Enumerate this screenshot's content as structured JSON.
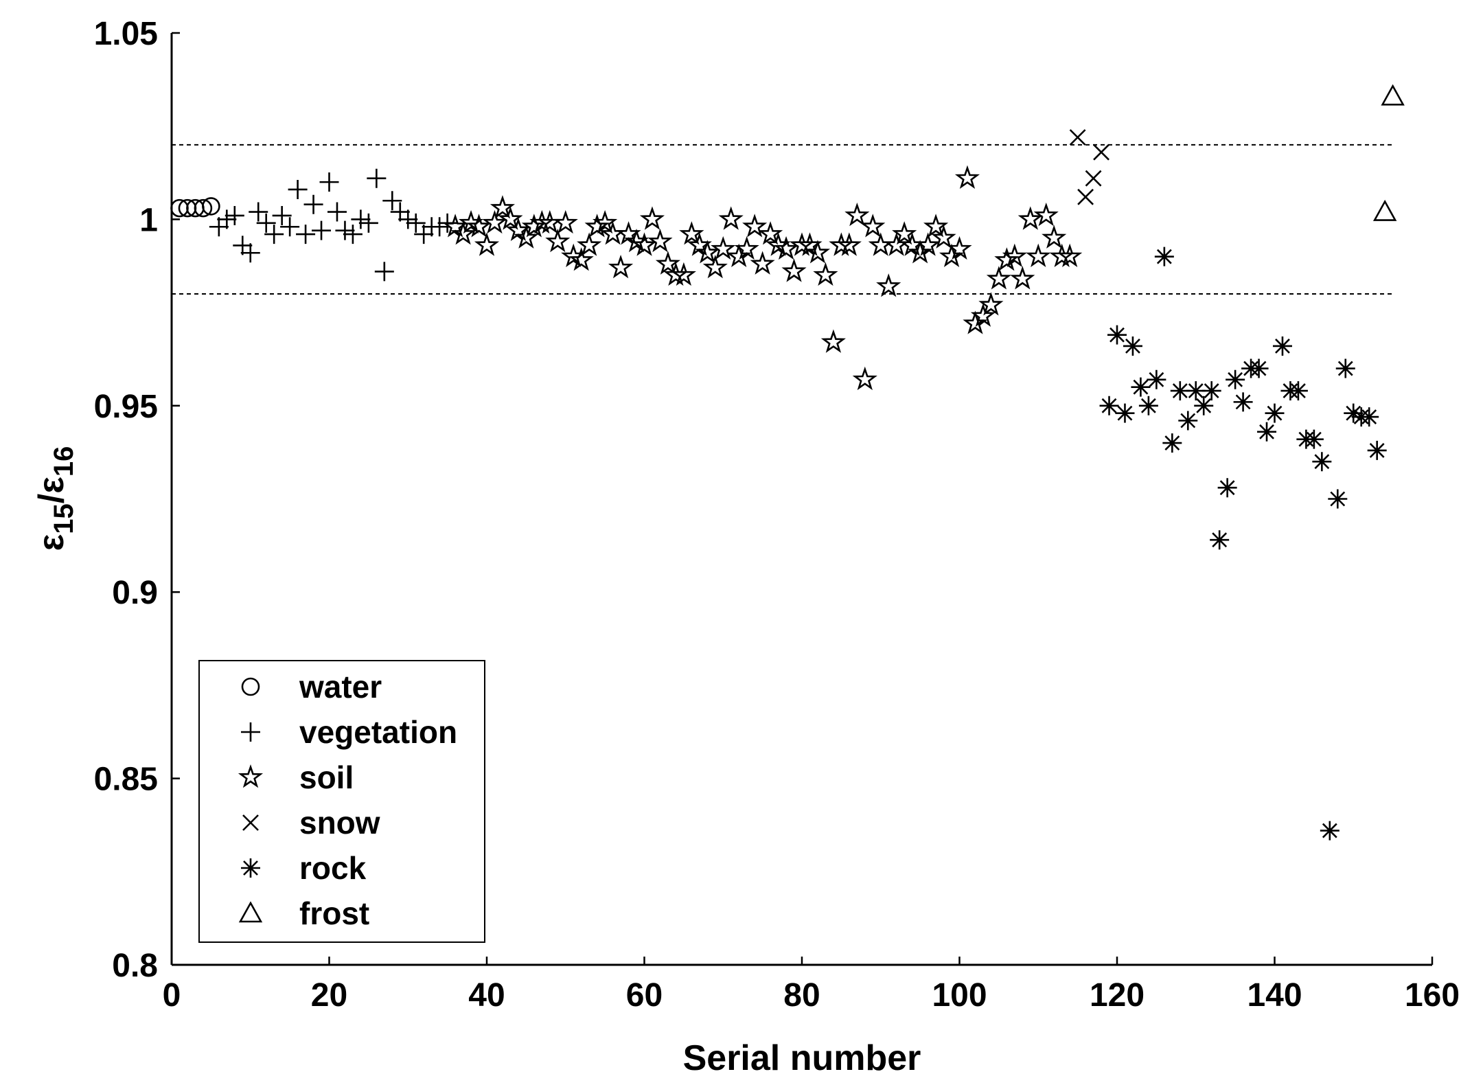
{
  "chart_data": {
    "type": "scatter",
    "title": "",
    "xlabel": "Serial number",
    "ylabel_base": "ε",
    "ylabel_numerator_sub": "15",
    "ylabel_denominator_sub": "16",
    "ylabel_sep": "/",
    "xlim": [
      0,
      160
    ],
    "ylim": [
      0.8,
      1.05
    ],
    "xticks": [
      0,
      20,
      40,
      60,
      80,
      100,
      120,
      140,
      160
    ],
    "yticks": [
      0.8,
      0.85,
      0.9,
      0.95,
      1,
      1.05
    ],
    "xtick_labels": [
      "0",
      "20",
      "40",
      "60",
      "80",
      "100",
      "120",
      "140",
      "160"
    ],
    "ytick_labels": [
      "0.8",
      "0.85",
      "0.9",
      "0.95",
      "1",
      "1.05"
    ],
    "reference_lines": [
      1.02,
      0.98
    ],
    "legend_position": "lower-left",
    "series": [
      {
        "name": "water",
        "marker": "circle",
        "points": [
          [
            1,
            1.003
          ],
          [
            2,
            1.003
          ],
          [
            3,
            1.003
          ],
          [
            4,
            1.003
          ],
          [
            5,
            1.0035
          ]
        ]
      },
      {
        "name": "vegetation",
        "marker": "plus",
        "points": [
          [
            6,
            0.998
          ],
          [
            7,
            1.0
          ],
          [
            8,
            1.001
          ],
          [
            9,
            0.993
          ],
          [
            10,
            0.991
          ],
          [
            11,
            1.002
          ],
          [
            12,
            0.999
          ],
          [
            13,
            0.996
          ],
          [
            14,
            1.001
          ],
          [
            15,
            0.998
          ],
          [
            16,
            1.008
          ],
          [
            17,
            0.996
          ],
          [
            18,
            1.004
          ],
          [
            19,
            0.997
          ],
          [
            20,
            1.01
          ],
          [
            21,
            1.002
          ],
          [
            22,
            0.997
          ],
          [
            23,
            0.996
          ],
          [
            24,
            1.0
          ],
          [
            25,
            0.999
          ],
          [
            26,
            1.011
          ],
          [
            27,
            0.986
          ],
          [
            28,
            1.005
          ],
          [
            29,
            1.002
          ],
          [
            30,
            1.0
          ],
          [
            31,
            0.999
          ],
          [
            32,
            0.996
          ],
          [
            33,
            0.998
          ],
          [
            34,
            0.998
          ],
          [
            35,
            0.999
          ]
        ]
      },
      {
        "name": "soil",
        "marker": "star",
        "points": [
          [
            36,
            0.998
          ],
          [
            37,
            0.996
          ],
          [
            38,
            0.999
          ],
          [
            39,
            0.998
          ],
          [
            40,
            0.993
          ],
          [
            41,
            0.999
          ],
          [
            42,
            1.003
          ],
          [
            43,
            1.0
          ],
          [
            44,
            0.997
          ],
          [
            45,
            0.995
          ],
          [
            46,
            0.998
          ],
          [
            47,
            0.999
          ],
          [
            48,
            0.999
          ],
          [
            49,
            0.994
          ],
          [
            50,
            0.999
          ],
          [
            51,
            0.99
          ],
          [
            52,
            0.989
          ],
          [
            53,
            0.993
          ],
          [
            54,
            0.998
          ],
          [
            55,
            0.999
          ],
          [
            56,
            0.996
          ],
          [
            57,
            0.987
          ],
          [
            58,
            0.996
          ],
          [
            59,
            0.994
          ],
          [
            60,
            0.993
          ],
          [
            61,
            1.0
          ],
          [
            62,
            0.994
          ],
          [
            63,
            0.988
          ],
          [
            64,
            0.985
          ],
          [
            65,
            0.985
          ],
          [
            66,
            0.996
          ],
          [
            67,
            0.993
          ],
          [
            68,
            0.991
          ],
          [
            69,
            0.987
          ],
          [
            70,
            0.992
          ],
          [
            71,
            1.0
          ],
          [
            72,
            0.99
          ],
          [
            73,
            0.992
          ],
          [
            74,
            0.998
          ],
          [
            75,
            0.988
          ],
          [
            76,
            0.996
          ],
          [
            77,
            0.993
          ],
          [
            78,
            0.992
          ],
          [
            79,
            0.986
          ],
          [
            80,
            0.993
          ],
          [
            81,
            0.993
          ],
          [
            82,
            0.991
          ],
          [
            83,
            0.985
          ],
          [
            84,
            0.967
          ],
          [
            85,
            0.993
          ],
          [
            86,
            0.993
          ],
          [
            87,
            1.001
          ],
          [
            88,
            0.957
          ],
          [
            89,
            0.998
          ],
          [
            90,
            0.993
          ],
          [
            91,
            0.982
          ],
          [
            92,
            0.993
          ],
          [
            93,
            0.996
          ],
          [
            94,
            0.993
          ],
          [
            95,
            0.991
          ],
          [
            96,
            0.993
          ],
          [
            97,
            0.998
          ],
          [
            98,
            0.995
          ],
          [
            99,
            0.99
          ],
          [
            100,
            0.992
          ],
          [
            101,
            1.011
          ],
          [
            102,
            0.972
          ],
          [
            103,
            0.974
          ],
          [
            104,
            0.977
          ],
          [
            105,
            0.984
          ],
          [
            106,
            0.989
          ],
          [
            107,
            0.99
          ],
          [
            108,
            0.984
          ],
          [
            109,
            1.0
          ],
          [
            110,
            0.99
          ],
          [
            111,
            1.001
          ],
          [
            112,
            0.995
          ],
          [
            113,
            0.99
          ],
          [
            114,
            0.99
          ]
        ]
      },
      {
        "name": "snow",
        "marker": "cross",
        "points": [
          [
            115,
            1.022
          ],
          [
            116,
            1.006
          ],
          [
            117,
            1.011
          ],
          [
            118,
            1.018
          ]
        ]
      },
      {
        "name": "rock",
        "marker": "asterisk",
        "points": [
          [
            119,
            0.95
          ],
          [
            120,
            0.969
          ],
          [
            121,
            0.948
          ],
          [
            122,
            0.966
          ],
          [
            123,
            0.955
          ],
          [
            124,
            0.95
          ],
          [
            125,
            0.957
          ],
          [
            126,
            0.99
          ],
          [
            127,
            0.94
          ],
          [
            128,
            0.954
          ],
          [
            129,
            0.946
          ],
          [
            130,
            0.954
          ],
          [
            131,
            0.95
          ],
          [
            132,
            0.954
          ],
          [
            133,
            0.914
          ],
          [
            134,
            0.928
          ],
          [
            135,
            0.957
          ],
          [
            136,
            0.951
          ],
          [
            137,
            0.96
          ],
          [
            138,
            0.96
          ],
          [
            139,
            0.943
          ],
          [
            140,
            0.948
          ],
          [
            141,
            0.966
          ],
          [
            142,
            0.954
          ],
          [
            143,
            0.954
          ],
          [
            144,
            0.941
          ],
          [
            145,
            0.941
          ],
          [
            146,
            0.935
          ],
          [
            147,
            0.836
          ],
          [
            148,
            0.925
          ],
          [
            149,
            0.96
          ],
          [
            150,
            0.948
          ],
          [
            151,
            0.947
          ],
          [
            152,
            0.947
          ],
          [
            153,
            0.938
          ]
        ]
      },
      {
        "name": "frost",
        "marker": "triangle",
        "points": [
          [
            154,
            1.002
          ],
          [
            155,
            1.033
          ]
        ]
      }
    ]
  }
}
